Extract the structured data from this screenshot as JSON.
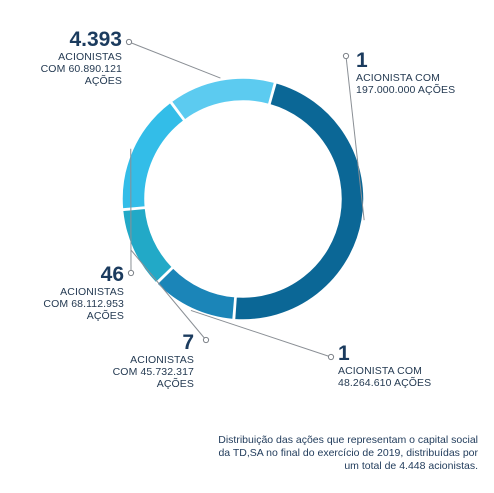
{
  "chart_data": {
    "type": "donut",
    "slices": [
      {
        "count": "1",
        "label": "ACIONISTA COM 197.000.000 AÇÕES",
        "shares": 197000000,
        "color": "#0b6796"
      },
      {
        "count": "1",
        "label": "ACIONISTA COM 48.264.610 AÇÕES",
        "shares": 48264610,
        "color": "#1b85b8"
      },
      {
        "count": "7",
        "label": "ACIONISTAS COM 45.732.317 AÇÕES",
        "shares": 45732317,
        "color": "#22a9c7"
      },
      {
        "count": "46",
        "label": "ACIONISTAS COM 68.112.953 AÇÕES",
        "shares": 68112953,
        "color": "#33bde8"
      },
      {
        "count": "4.393",
        "label": "ACIONISTAS COM 60.890.121 AÇÕES",
        "shares": 60890121,
        "color": "#5ccbf0"
      }
    ],
    "caption": "Distribuição das ações que representam o capital social da TD,SA no final do exercício de 2019, distribuídas por um total de 4.448 acionistas."
  },
  "annotations": [
    {
      "count": "1",
      "line1": "ACIONISTA COM",
      "line2": "197.000.000 AÇÕES"
    },
    {
      "count": "1",
      "line1": "ACIONISTA COM",
      "line2": "48.264.610 AÇÕES"
    },
    {
      "count": "7",
      "line1": "ACIONISTAS",
      "line2": "COM 45.732.317",
      "line3": "AÇÕES"
    },
    {
      "count": "46",
      "line1": "ACIONISTAS",
      "line2": "COM 68.112.953",
      "line3": "AÇÕES"
    },
    {
      "count": "4.393",
      "line1": "ACIONISTAS",
      "line2": "COM 60.890.121",
      "line3": "AÇÕES"
    }
  ]
}
